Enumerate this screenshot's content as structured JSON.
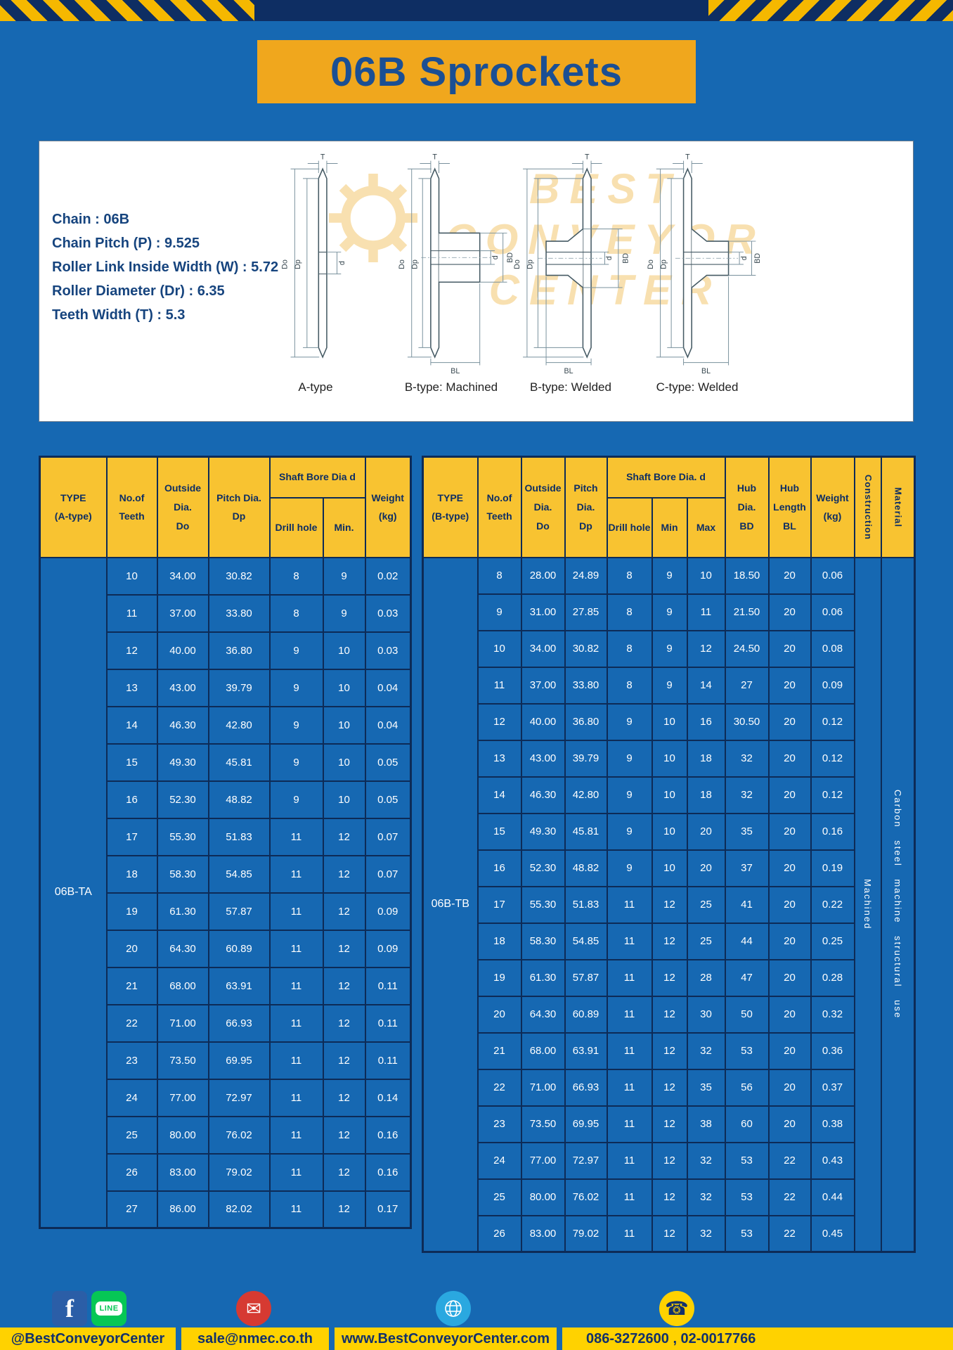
{
  "title": "06B Sprockets",
  "colors": {
    "page_blue": "#1668b2",
    "navy": "#0e2e63",
    "banner_yellow": "#f0a71d",
    "table_header_yellow": "#f8c331",
    "footer_yellow": "#ffd200",
    "facebook_blue": "#2b5ea7",
    "line_green": "#06c755",
    "mail_red": "#d63a32",
    "globe_blue": "#2aa8e0"
  },
  "specs": [
    "Chain : 06B",
    "Chain Pitch (P) : 9.525",
    "Roller Link Inside Width (W) : 5.72",
    "Roller Diameter (Dr) : 6.35",
    "Teeth Width (T) : 5.3"
  ],
  "watermark": {
    "lines": [
      "BEST",
      "CONVEYOR",
      "CENTER"
    ]
  },
  "drawings": {
    "items": [
      {
        "label": "A-type",
        "dims": [
          "T",
          "Do",
          "Dp",
          "d"
        ]
      },
      {
        "label": "B-type: Machined",
        "dims": [
          "T",
          "Do",
          "Dp",
          "d",
          "BD",
          "BL"
        ]
      },
      {
        "label": "B-type: Welded",
        "dims": [
          "T",
          "Do",
          "Dp",
          "d",
          "BD",
          "BL"
        ]
      },
      {
        "label": "C-type: Welded",
        "dims": [
          "T",
          "Do",
          "Dp",
          "d",
          "BD",
          "BL"
        ]
      }
    ]
  },
  "table_a": {
    "headers": {
      "type": "TYPE\n(A-type)",
      "teeth": "No.of\nTeeth",
      "outside": "Outside\nDia.\nDo",
      "pitch": "Pitch Dia.\nDp",
      "shaft_bore": "Shaft Bore Dia d",
      "drill": "Drill hole",
      "min": "Min.",
      "weight": "Weight\n(kg)"
    },
    "type_value": "06B-TA",
    "rows": [
      [
        "10",
        "34.00",
        "30.82",
        "8",
        "9",
        "0.02"
      ],
      [
        "11",
        "37.00",
        "33.80",
        "8",
        "9",
        "0.03"
      ],
      [
        "12",
        "40.00",
        "36.80",
        "9",
        "10",
        "0.03"
      ],
      [
        "13",
        "43.00",
        "39.79",
        "9",
        "10",
        "0.04"
      ],
      [
        "14",
        "46.30",
        "42.80",
        "9",
        "10",
        "0.04"
      ],
      [
        "15",
        "49.30",
        "45.81",
        "9",
        "10",
        "0.05"
      ],
      [
        "16",
        "52.30",
        "48.82",
        "9",
        "10",
        "0.05"
      ],
      [
        "17",
        "55.30",
        "51.83",
        "11",
        "12",
        "0.07"
      ],
      [
        "18",
        "58.30",
        "54.85",
        "11",
        "12",
        "0.07"
      ],
      [
        "19",
        "61.30",
        "57.87",
        "11",
        "12",
        "0.09"
      ],
      [
        "20",
        "64.30",
        "60.89",
        "11",
        "12",
        "0.09"
      ],
      [
        "21",
        "68.00",
        "63.91",
        "11",
        "12",
        "0.11"
      ],
      [
        "22",
        "71.00",
        "66.93",
        "11",
        "12",
        "0.11"
      ],
      [
        "23",
        "73.50",
        "69.95",
        "11",
        "12",
        "0.11"
      ],
      [
        "24",
        "77.00",
        "72.97",
        "11",
        "12",
        "0.14"
      ],
      [
        "25",
        "80.00",
        "76.02",
        "11",
        "12",
        "0.16"
      ],
      [
        "26",
        "83.00",
        "79.02",
        "11",
        "12",
        "0.16"
      ],
      [
        "27",
        "86.00",
        "82.02",
        "11",
        "12",
        "0.17"
      ]
    ]
  },
  "table_b": {
    "headers": {
      "type": "TYPE\n(B-type)",
      "teeth": "No.of\nTeeth",
      "outside": "Outside\nDia.\nDo",
      "pitch": "Pitch\nDia.\nDp",
      "shaft_bore": "Shaft Bore Dia. d",
      "drill": "Drill hole",
      "min": "Min",
      "max": "Max",
      "hub_dia": "Hub\nDia.\nBD",
      "hub_len": "Hub\nLength\nBL",
      "weight": "Weight\n(kg)",
      "construction": "Construction",
      "material": "Material"
    },
    "type_value": "06B-TB",
    "construction_value": "Machined",
    "material_value": "Carbon steel machine structural use",
    "rows": [
      [
        "8",
        "28.00",
        "24.89",
        "8",
        "9",
        "10",
        "18.50",
        "20",
        "0.06"
      ],
      [
        "9",
        "31.00",
        "27.85",
        "8",
        "9",
        "11",
        "21.50",
        "20",
        "0.06"
      ],
      [
        "10",
        "34.00",
        "30.82",
        "8",
        "9",
        "12",
        "24.50",
        "20",
        "0.08"
      ],
      [
        "11",
        "37.00",
        "33.80",
        "8",
        "9",
        "14",
        "27",
        "20",
        "0.09"
      ],
      [
        "12",
        "40.00",
        "36.80",
        "9",
        "10",
        "16",
        "30.50",
        "20",
        "0.12"
      ],
      [
        "13",
        "43.00",
        "39.79",
        "9",
        "10",
        "18",
        "32",
        "20",
        "0.12"
      ],
      [
        "14",
        "46.30",
        "42.80",
        "9",
        "10",
        "18",
        "32",
        "20",
        "0.12"
      ],
      [
        "15",
        "49.30",
        "45.81",
        "9",
        "10",
        "20",
        "35",
        "20",
        "0.16"
      ],
      [
        "16",
        "52.30",
        "48.82",
        "9",
        "10",
        "20",
        "37",
        "20",
        "0.19"
      ],
      [
        "17",
        "55.30",
        "51.83",
        "11",
        "12",
        "25",
        "41",
        "20",
        "0.22"
      ],
      [
        "18",
        "58.30",
        "54.85",
        "11",
        "12",
        "25",
        "44",
        "20",
        "0.25"
      ],
      [
        "19",
        "61.30",
        "57.87",
        "11",
        "12",
        "28",
        "47",
        "20",
        "0.28"
      ],
      [
        "20",
        "64.30",
        "60.89",
        "11",
        "12",
        "30",
        "50",
        "20",
        "0.32"
      ],
      [
        "21",
        "68.00",
        "63.91",
        "11",
        "12",
        "32",
        "53",
        "20",
        "0.36"
      ],
      [
        "22",
        "71.00",
        "66.93",
        "11",
        "12",
        "35",
        "56",
        "20",
        "0.37"
      ],
      [
        "23",
        "73.50",
        "69.95",
        "11",
        "12",
        "38",
        "60",
        "20",
        "0.38"
      ],
      [
        "24",
        "77.00",
        "72.97",
        "11",
        "12",
        "32",
        "53",
        "22",
        "0.43"
      ],
      [
        "25",
        "80.00",
        "76.02",
        "11",
        "12",
        "32",
        "53",
        "22",
        "0.44"
      ],
      [
        "26",
        "83.00",
        "79.02",
        "11",
        "12",
        "32",
        "53",
        "22",
        "0.45"
      ]
    ]
  },
  "footer": {
    "facebook_label": "f",
    "line_label": "LINE",
    "social_handle": "@BestConveyorCenter",
    "email": "sale@nmec.co.th",
    "website": "www.BestConveyorCenter.com",
    "phones": "086-3272600 , 02-0017766"
  }
}
